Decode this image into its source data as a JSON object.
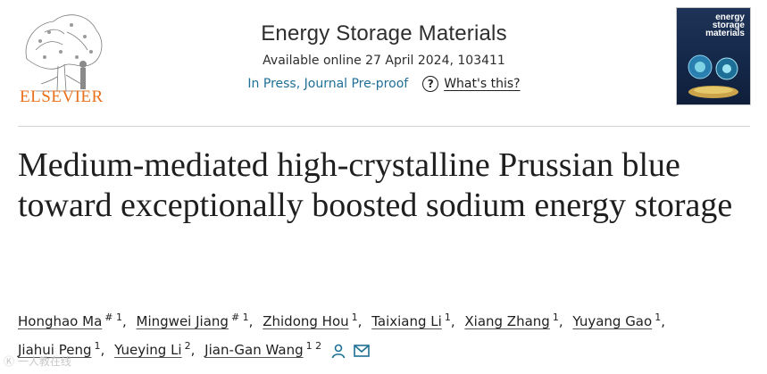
{
  "publisher": {
    "logo_text": "ELSEVIER"
  },
  "journal": {
    "title": "Energy Storage Materials",
    "available": "Available online 27 April 2024, 103411",
    "status": "In Press, Journal Pre-proof",
    "whats_this": "What's this?",
    "cover_title": "energy storage materials"
  },
  "article": {
    "title": "Medium-mediated high-crystalline Prussian blue toward exceptionally boosted sodium energy storage"
  },
  "authors": [
    {
      "name": "Honghao Ma",
      "sup": "# 1"
    },
    {
      "name": "Mingwei Jiang",
      "sup": "# 1"
    },
    {
      "name": "Zhidong Hou",
      "sup": "1"
    },
    {
      "name": "Taixiang Li",
      "sup": "1"
    },
    {
      "name": "Xiang Zhang",
      "sup": "1"
    },
    {
      "name": "Yuyang Gao",
      "sup": "1"
    },
    {
      "name": "Jiahui Peng",
      "sup": "1"
    },
    {
      "name": "Yueying Li",
      "sup": "2"
    },
    {
      "name": "Jian-Gan Wang",
      "sup": "1 2"
    }
  ],
  "icons": {
    "person": "person-icon",
    "mail": "mail-icon",
    "help": "question-icon"
  },
  "colors": {
    "elsevier_orange": "#e9711c",
    "link_blue": "#1f6f96",
    "text": "#1f1f1f"
  },
  "watermark": "Ⓚ 一人教在线"
}
